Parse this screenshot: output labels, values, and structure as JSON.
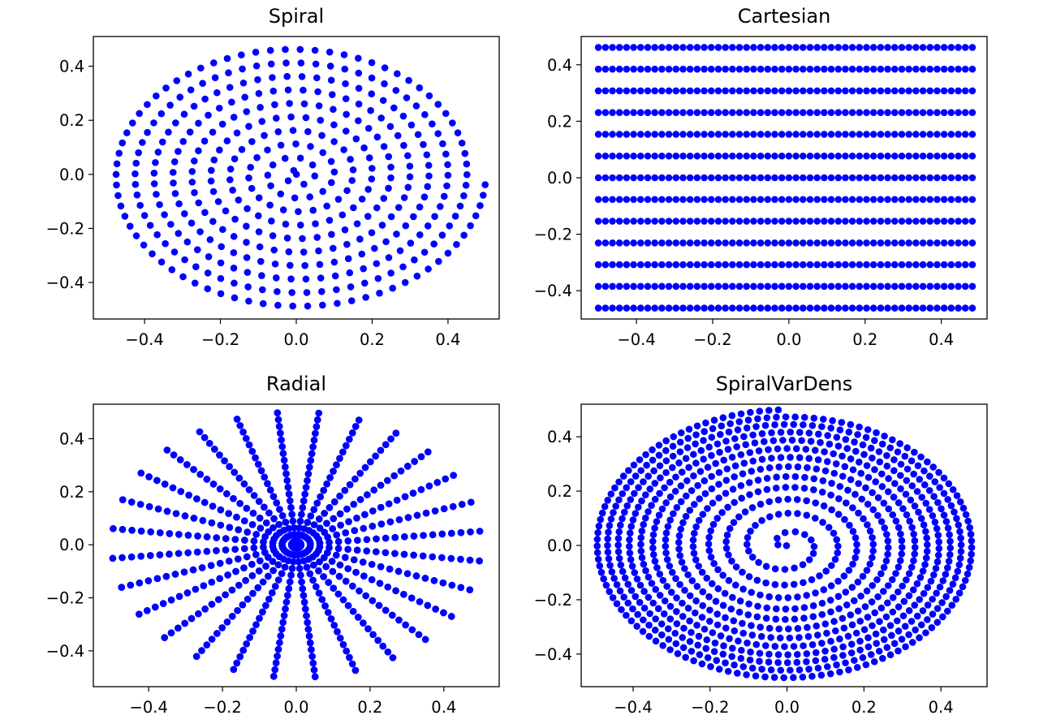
{
  "chart_data": [
    {
      "type": "scatter",
      "title": "Spiral",
      "pattern": "spiral",
      "marker_color": "#0000ff",
      "xlim": [
        -0.535,
        0.535
      ],
      "ylim": [
        -0.535,
        0.51
      ],
      "xticks": [
        -0.4,
        -0.2,
        0.0,
        0.2,
        0.4
      ],
      "yticks": [
        -0.4,
        -0.2,
        0.0,
        0.2,
        0.4
      ],
      "xtick_labels": [
        "−0.4",
        "−0.2",
        "0.0",
        "0.2",
        "0.4"
      ],
      "ytick_labels": [
        "−0.4",
        "−0.2",
        "0.0",
        "0.2",
        "0.4"
      ],
      "turns": 10,
      "max_radius": 0.5,
      "points_per_turn_outer": 80,
      "xlabel": "",
      "ylabel": ""
    },
    {
      "type": "scatter",
      "title": "Cartesian",
      "pattern": "cartesian",
      "marker_color": "#0000ff",
      "xlim": [
        -0.545,
        0.52
      ],
      "ylim": [
        -0.5,
        0.5
      ],
      "xticks": [
        -0.4,
        -0.2,
        0.0,
        0.2,
        0.4
      ],
      "yticks": [
        -0.4,
        -0.2,
        0.0,
        0.2,
        0.4
      ],
      "xtick_labels": [
        "−0.4",
        "−0.2",
        "0.0",
        "0.2",
        "0.4"
      ],
      "ytick_labels": [
        "−0.4",
        "−0.2",
        "0.0",
        "0.2",
        "0.4"
      ],
      "x_start": -0.5,
      "x_end": 0.4815,
      "x_count": 54,
      "y_values": [
        0.4615,
        0.3846,
        0.3077,
        0.2308,
        0.1538,
        0.0769,
        0.0,
        -0.0769,
        -0.1538,
        -0.2308,
        -0.3077,
        -0.3846,
        -0.4615
      ],
      "xlabel": "",
      "ylabel": ""
    },
    {
      "type": "scatter",
      "title": "Radial",
      "pattern": "radial",
      "marker_color": "#0000ff",
      "xlim": [
        -0.55,
        0.55
      ],
      "ylim": [
        -0.535,
        0.53
      ],
      "xticks": [
        -0.4,
        -0.2,
        0.0,
        0.2,
        0.4
      ],
      "yticks": [
        -0.4,
        -0.2,
        0.0,
        0.2,
        0.4
      ],
      "xtick_labels": [
        "−0.4",
        "−0.2",
        "0.0",
        "0.2",
        "0.4"
      ],
      "ytick_labels": [
        "−0.4",
        "−0.2",
        "0.0",
        "0.2",
        "0.4"
      ],
      "spokes": 28,
      "points_per_spoke": 40,
      "max_radius": 0.5,
      "start_angle_deg": 83,
      "xlabel": "",
      "ylabel": ""
    },
    {
      "type": "scatter",
      "title": "SpiralVarDens",
      "pattern": "spiral_variable_density",
      "marker_color": "#0000ff",
      "xlim": [
        -0.535,
        0.52
      ],
      "ylim": [
        -0.52,
        0.52
      ],
      "xticks": [
        -0.4,
        -0.2,
        0.0,
        0.2,
        0.4
      ],
      "yticks": [
        -0.4,
        -0.2,
        0.0,
        0.2,
        0.4
      ],
      "xtick_labels": [
        "−0.4",
        "−0.2",
        "0.0",
        "0.2",
        "0.4"
      ],
      "ytick_labels": [
        "−0.4",
        "−0.2",
        "0.0",
        "0.2",
        "0.4"
      ],
      "turns": 12,
      "max_radius": 0.5,
      "start_angle_deg": 90,
      "end_angle_deg": 215,
      "xlabel": "",
      "ylabel": ""
    }
  ]
}
